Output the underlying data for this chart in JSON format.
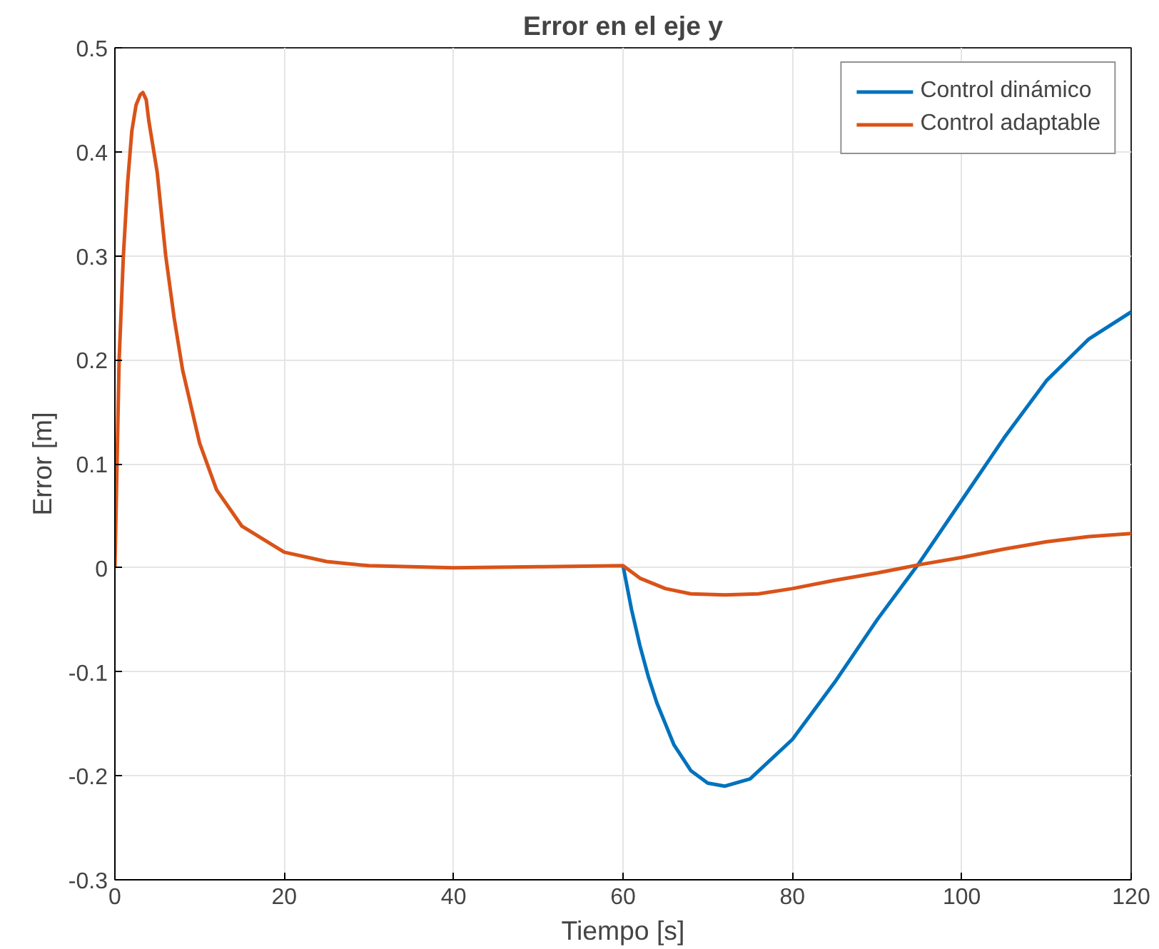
{
  "chart_data": {
    "type": "line",
    "title": "Error en el eje y",
    "xlabel": "Tiempo [s]",
    "ylabel": "Error [m]",
    "xlim": [
      0,
      120
    ],
    "ylim": [
      -0.3,
      0.5
    ],
    "xticks": [
      0,
      20,
      40,
      60,
      80,
      100,
      120
    ],
    "yticks": [
      {
        "value": -0.3,
        "label": "-0.3"
      },
      {
        "value": -0.2,
        "label": "-0.2"
      },
      {
        "value": -0.1,
        "label": "-0.1"
      },
      0,
      0.1,
      0.2,
      0.3,
      0.4,
      0.5
    ],
    "grid": true,
    "legend": "top right",
    "line_style": "solid",
    "marker": "none",
    "series": [
      {
        "name": "Control dinámico",
        "color": "#0072bd",
        "x": [
          60,
          61,
          62,
          63,
          64,
          66,
          68,
          70,
          72,
          75,
          80,
          85,
          90,
          95,
          100,
          105,
          110,
          115,
          120
        ],
        "values": [
          0.002,
          -0.04,
          -0.075,
          -0.105,
          -0.13,
          -0.17,
          -0.195,
          -0.207,
          -0.21,
          -0.203,
          -0.165,
          -0.11,
          -0.05,
          0.005,
          0.065,
          0.125,
          0.18,
          0.22,
          0.246
        ]
      },
      {
        "name": "Control adaptable",
        "color": "#d95319",
        "x": [
          0,
          0.5,
          1,
          1.5,
          2,
          2.5,
          3,
          3.3,
          3.7,
          4,
          5,
          6,
          7,
          8,
          10,
          12,
          15,
          20,
          25,
          30,
          40,
          50,
          60,
          62,
          65,
          68,
          72,
          76,
          80,
          85,
          90,
          95,
          100,
          105,
          110,
          115,
          120
        ],
        "values": [
          0,
          0.2,
          0.3,
          0.37,
          0.42,
          0.445,
          0.455,
          0.457,
          0.45,
          0.43,
          0.38,
          0.3,
          0.24,
          0.19,
          0.12,
          0.075,
          0.04,
          0.015,
          0.006,
          0.002,
          0,
          0.001,
          0.002,
          -0.01,
          -0.02,
          -0.025,
          -0.026,
          -0.025,
          -0.02,
          -0.012,
          -0.005,
          0.003,
          0.01,
          0.018,
          0.025,
          0.03,
          0.033
        ]
      }
    ]
  }
}
